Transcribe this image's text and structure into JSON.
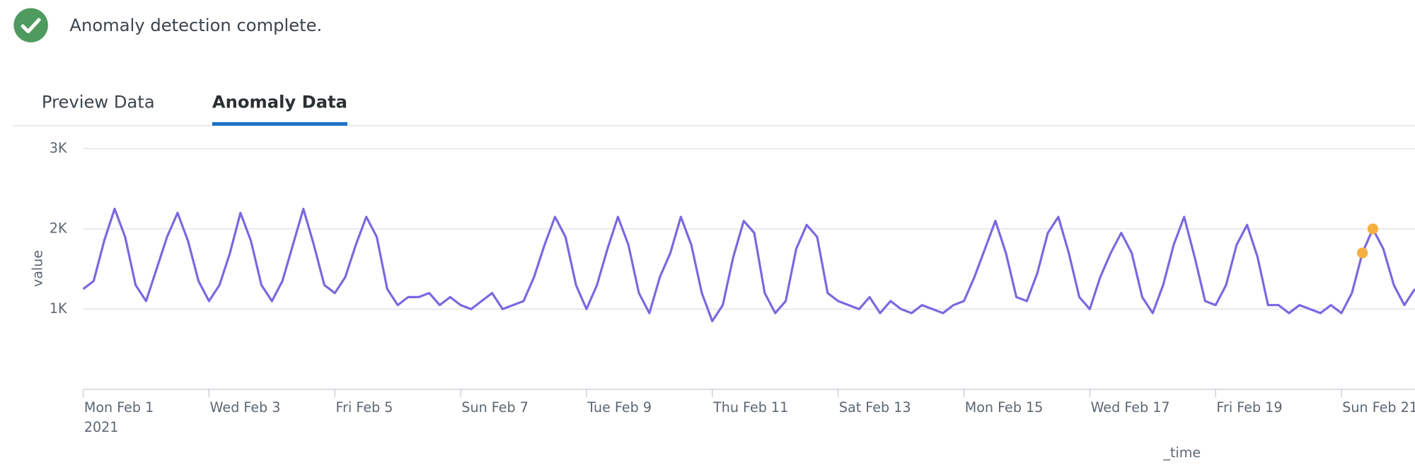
{
  "status_message": "Anomaly detection complete.",
  "tabs": [
    {
      "label": "Preview Data",
      "selected": false
    },
    {
      "label": "Anomaly Data",
      "selected": true
    }
  ],
  "chart_data": {
    "type": "line",
    "x_label": "_time",
    "y_label": "value",
    "x_year_label": "2021",
    "categories": [
      "Mon Feb 1",
      null,
      null,
      null,
      null,
      null,
      null,
      null,
      null,
      null,
      null,
      null,
      "Wed Feb 3",
      null,
      null,
      null,
      null,
      null,
      null,
      null,
      null,
      null,
      null,
      null,
      "Fri Feb 5",
      null,
      null,
      null,
      null,
      null,
      null,
      null,
      null,
      null,
      null,
      null,
      "Sun Feb 7",
      null,
      null,
      null,
      null,
      null,
      null,
      null,
      null,
      null,
      null,
      null,
      "Tue Feb 9",
      null,
      null,
      null,
      null,
      null,
      null,
      null,
      null,
      null,
      null,
      null,
      "Thu Feb 11",
      null,
      null,
      null,
      null,
      null,
      null,
      null,
      null,
      null,
      null,
      null,
      "Sat Feb 13",
      null,
      null,
      null,
      null,
      null,
      null,
      null,
      null,
      null,
      null,
      null,
      "Mon Feb 15",
      null,
      null,
      null,
      null,
      null,
      null,
      null,
      null,
      null,
      null,
      null,
      "Wed Feb 17",
      null,
      null,
      null,
      null,
      null,
      null,
      null,
      null,
      null,
      null,
      null,
      "Fri Feb 19",
      null,
      null,
      null,
      null,
      null,
      null,
      null,
      null,
      null,
      null,
      null,
      "Sun Feb 21",
      null,
      null,
      null,
      null,
      null,
      null,
      null
    ],
    "series": [
      {
        "color": "#7b68e0",
        "values": [
          1250,
          1350,
          1850,
          2250,
          1900,
          1300,
          1100,
          1500,
          1900,
          2200,
          1850,
          1350,
          1100,
          1300,
          1700,
          2200,
          1850,
          1300,
          1100,
          1350,
          1800,
          2250,
          1800,
          1300,
          1200,
          1400,
          1800,
          2150,
          1900,
          1250,
          1050,
          1150,
          1150,
          1200,
          1050,
          1150,
          1050,
          1000,
          1100,
          1200,
          1000,
          1050,
          1100,
          1400,
          1800,
          2150,
          1900,
          1300,
          1000,
          1300,
          1750,
          2150,
          1800,
          1200,
          950,
          1400,
          1700,
          2150,
          1800,
          1200,
          850,
          1050,
          1650,
          2100,
          1950,
          1200,
          950,
          1100,
          1750,
          2050,
          1900,
          1200,
          1100,
          1050,
          1000,
          1150,
          950,
          1100,
          1000,
          950,
          1050,
          1000,
          950,
          1050,
          1100,
          1400,
          1750,
          2100,
          1700,
          1150,
          1100,
          1450,
          1950,
          2150,
          1700,
          1150,
          1000,
          1400,
          1700,
          1950,
          1700,
          1150,
          950,
          1300,
          1800,
          2150,
          1650,
          1100,
          1050,
          1300,
          1800,
          2050,
          1650,
          1050,
          1050,
          950,
          1050,
          1000,
          950,
          1050,
          950,
          1200,
          1700,
          2000,
          1750,
          1300,
          1050,
          1250
        ]
      },
      {
        "type": "scatter",
        "color": "#f5b041",
        "values": [
          null,
          null,
          null,
          null,
          null,
          null,
          null,
          null,
          null,
          null,
          null,
          null,
          null,
          null,
          null,
          null,
          null,
          null,
          null,
          null,
          null,
          null,
          null,
          null,
          null,
          null,
          null,
          null,
          null,
          null,
          null,
          null,
          null,
          null,
          null,
          null,
          null,
          null,
          null,
          null,
          null,
          null,
          null,
          null,
          null,
          null,
          null,
          null,
          null,
          null,
          null,
          null,
          null,
          null,
          null,
          null,
          null,
          null,
          null,
          null,
          null,
          null,
          null,
          null,
          null,
          null,
          null,
          null,
          null,
          null,
          null,
          null,
          null,
          null,
          null,
          null,
          null,
          null,
          null,
          null,
          null,
          null,
          null,
          null,
          null,
          null,
          null,
          null,
          null,
          null,
          null,
          null,
          null,
          null,
          null,
          null,
          null,
          null,
          null,
          null,
          null,
          null,
          null,
          null,
          null,
          null,
          null,
          null,
          null,
          null,
          null,
          null,
          null,
          null,
          null,
          null,
          null,
          null,
          null,
          null,
          null,
          null,
          1700,
          2000,
          null,
          null,
          null,
          null
        ]
      }
    ],
    "ylim": [
      0,
      3000
    ],
    "yticks": [
      {
        "value": 1000,
        "label": "1K"
      },
      {
        "value": 2000,
        "label": "2K"
      },
      {
        "value": 3000,
        "label": "3K"
      }
    ],
    "grid": true
  }
}
